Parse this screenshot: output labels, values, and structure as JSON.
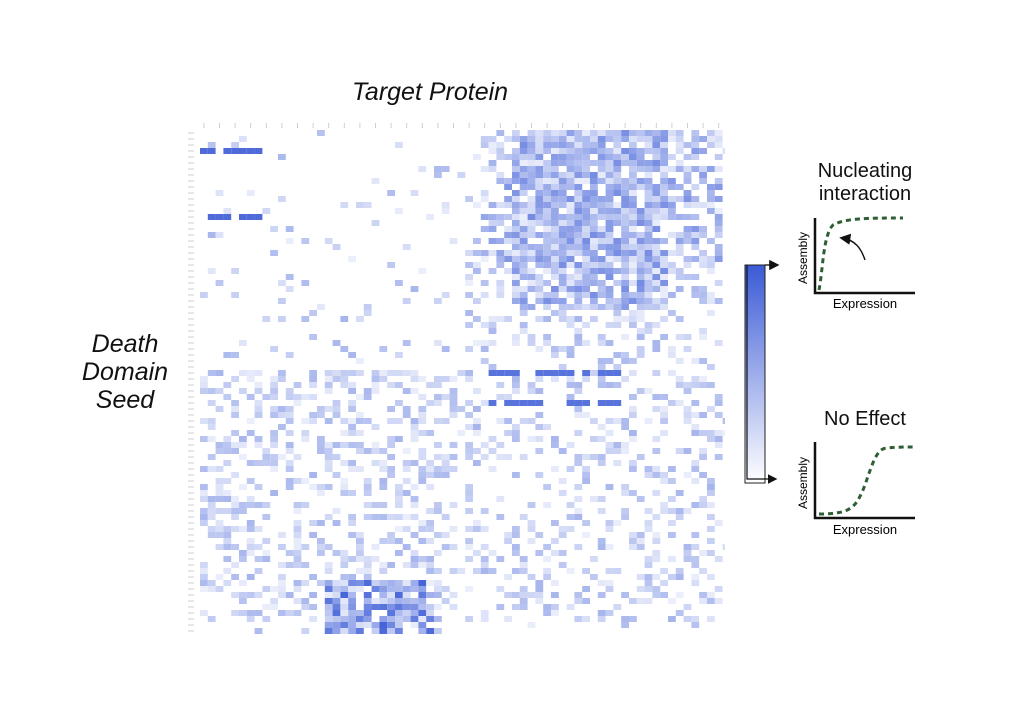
{
  "heatmap": {
    "column_axis_title": "Target Protein",
    "row_axis_title_lines": [
      "Death",
      "Domain",
      "Seed"
    ],
    "grid": {
      "rows": 84,
      "cols": 68
    },
    "color_low": "#ffffff",
    "color_high": "#3b5bd6",
    "colorbar_top": "#3b5bd6",
    "colorbar_bottom": "#ffffff"
  },
  "legend": {
    "nucleating": {
      "title_lines": [
        "Nucleating",
        "interaction"
      ],
      "y_axis_label": "Assembly",
      "x_axis_label": "Expression",
      "curve_color": "#2e5e34",
      "arrow_icon": "curved-arrow-icon"
    },
    "no_effect": {
      "title_lines": [
        "No Effect"
      ],
      "y_axis_label": "Assembly",
      "x_axis_label": "Expression",
      "curve_color": "#2e5e34"
    }
  }
}
